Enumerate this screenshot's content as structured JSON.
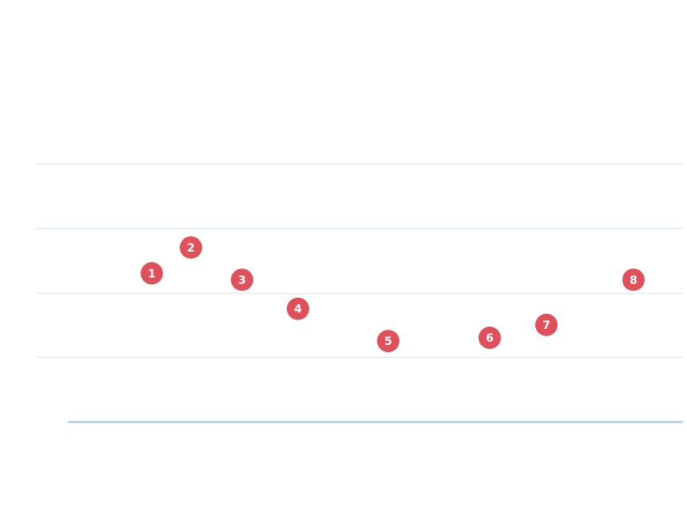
{
  "chart_data": {
    "type": "scatter",
    "title": "",
    "xlabel": "",
    "ylabel": "",
    "grid": true,
    "legend": "none",
    "x": [
      1,
      2,
      3,
      4,
      5,
      6,
      7,
      8
    ],
    "series": [
      {
        "labels": [
          "1",
          "2",
          "3",
          "4",
          "5",
          "6",
          "7",
          "8"
        ],
        "values": [
          6.6,
          7.4,
          6.4,
          5.5,
          4.5,
          4.6,
          5.0,
          6.4
        ]
      }
    ],
    "ylim": [
      2,
      10
    ],
    "yticks": [
      4,
      6,
      8
    ],
    "colors": {
      "marker": "#e0505a",
      "marker_text": "#ffffff",
      "grid": "#d9e6f0",
      "baseline": "#9cc3de"
    }
  }
}
